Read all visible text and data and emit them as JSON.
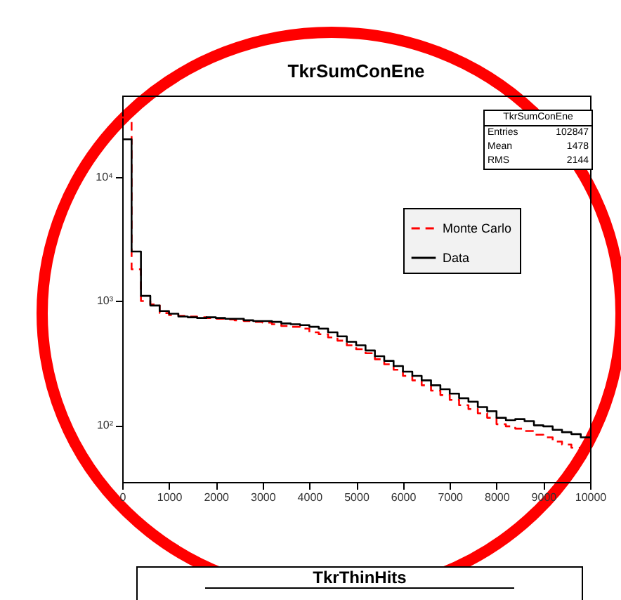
{
  "chart_data": [
    {
      "type": "histogram",
      "title": "TkrSumConEne",
      "log": "y",
      "grid": false,
      "legend": "top right",
      "xlim": [
        0,
        10000
      ],
      "xticks": [
        0,
        1000,
        2000,
        3000,
        4000,
        5000,
        6000,
        7000,
        8000,
        9000,
        10000
      ],
      "ylim": [
        35,
        45000
      ],
      "yticks": [
        {
          "value": 100,
          "label": "10²"
        },
        {
          "value": 1000,
          "label": "10³"
        },
        {
          "value": 10000,
          "label": "10⁴"
        }
      ],
      "bins": [
        0,
        200,
        400,
        600,
        800,
        1000,
        1200,
        1400,
        1600,
        1800,
        2000,
        2200,
        2400,
        2600,
        2800,
        3000,
        3200,
        3400,
        3600,
        3800,
        4000,
        4200,
        4400,
        4600,
        4800,
        5000,
        5200,
        5400,
        5600,
        5800,
        6000,
        6200,
        6400,
        6600,
        6800,
        7000,
        7200,
        7400,
        7600,
        7800,
        8000,
        8200,
        8400,
        8600,
        8800,
        9000,
        9200,
        9400,
        9600,
        9800,
        10000
      ],
      "series": [
        {
          "name": "Monte Carlo",
          "color": "#ff0000",
          "line_style": "dashed",
          "values": [
            30000,
            1800,
            1000,
            940,
            800,
            770,
            760,
            750,
            740,
            730,
            720,
            710,
            700,
            690,
            680,
            670,
            650,
            630,
            620,
            600,
            560,
            540,
            510,
            480,
            440,
            410,
            380,
            340,
            310,
            280,
            250,
            230,
            210,
            190,
            175,
            160,
            145,
            135,
            125,
            115,
            102,
            98,
            94,
            90,
            84,
            80,
            74,
            70,
            66,
            62
          ]
        },
        {
          "name": "Data",
          "color": "#000000",
          "line_style": "solid",
          "values": [
            20000,
            2500,
            1100,
            920,
            830,
            790,
            750,
            740,
            730,
            740,
            730,
            720,
            720,
            700,
            690,
            690,
            680,
            660,
            650,
            640,
            620,
            600,
            560,
            520,
            470,
            440,
            400,
            360,
            330,
            300,
            270,
            250,
            230,
            210,
            195,
            180,
            165,
            155,
            140,
            130,
            115,
            110,
            112,
            108,
            100,
            98,
            92,
            88,
            85,
            80
          ]
        }
      ],
      "annotations": [
        "TkrSumConEne",
        "Entries  102847",
        "Mean    1478",
        "RMS     2144"
      ]
    },
    {
      "type": "other",
      "title": "TkrThinHits"
    }
  ]
}
